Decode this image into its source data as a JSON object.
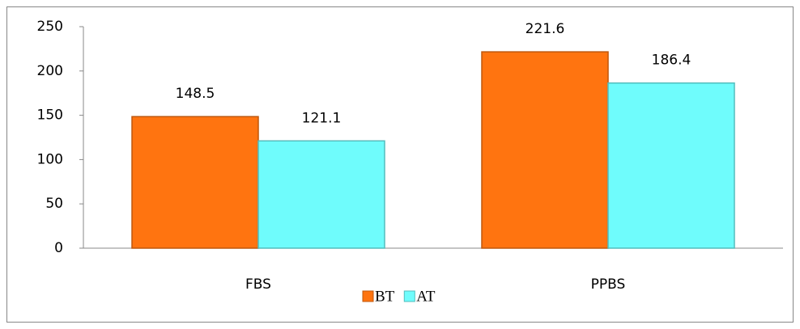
{
  "chart_data": {
    "type": "bar",
    "categories": [
      "FBS",
      "PPBS"
    ],
    "series": [
      {
        "name": "BT",
        "color": "#ff7410",
        "values": [
          148.5,
          221.6
        ]
      },
      {
        "name": "AT",
        "color": "#6ffcfc",
        "values": [
          121.1,
          186.4
        ]
      }
    ],
    "ylim": [
      0,
      250
    ],
    "yticks": [
      0,
      50,
      100,
      150,
      200,
      250
    ],
    "grid": false,
    "legend": "bottom"
  }
}
